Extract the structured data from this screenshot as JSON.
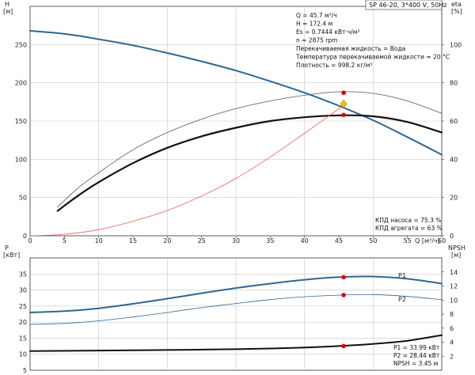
{
  "chart_data": [
    {
      "type": "line",
      "title": "SP 46-20, 3*400 V, 50Hz",
      "xlabel": "Q [м³/ч]",
      "xlim": [
        0,
        60
      ],
      "x_ticks": [
        0,
        5,
        10,
        15,
        20,
        25,
        30,
        35,
        40,
        45,
        50,
        55,
        60
      ],
      "ylabel_left": [
        "H",
        "[м]"
      ],
      "ylim_left": [
        0,
        300
      ],
      "y_ticks_left": [
        0,
        50,
        100,
        150,
        200,
        250
      ],
      "ylabel_right": [
        "eta",
        "[%]"
      ],
      "ylim_right": [
        0,
        120
      ],
      "y_ticks_right": [
        0,
        20,
        40,
        60,
        80,
        100
      ],
      "grid": true,
      "info_lines": [
        "Q = 45.7 м³/ч",
        "H = 172.4 м",
        "Es = 0.7444 кВт·ч/м³",
        "n = 2875 rpm",
        "Перекачиваемая жидкость = Вода",
        "Температура перекачиваемой жидкости = 20 °C",
        "Плотность = 998.2 кг/м³"
      ],
      "footer_lines": [
        "КПД насоса = 75.3 %",
        "КПД агрегата = 63 %"
      ],
      "series": [
        {
          "axis": "left",
          "color": "#2f6690",
          "width": 2,
          "x": [
            0,
            5,
            10,
            15,
            20,
            25,
            30,
            35,
            40,
            45,
            50,
            55,
            60
          ],
          "y": [
            268,
            264,
            257,
            249,
            239,
            228,
            216,
            202,
            187,
            170,
            151,
            129,
            106
          ]
        },
        {
          "axis": "right",
          "color": "#111111",
          "width": 2.2,
          "x": [
            4,
            7,
            10,
            15,
            20,
            25,
            30,
            35,
            40,
            45,
            50,
            55,
            60
          ],
          "y": [
            13,
            21,
            28,
            38,
            46,
            52,
            56.5,
            60,
            62,
            63,
            62.5,
            59.5,
            54
          ]
        },
        {
          "axis": "right",
          "color": "#555555",
          "width": 0.8,
          "x": [
            4,
            7,
            10,
            15,
            20,
            25,
            30,
            35,
            40,
            45,
            50,
            55,
            60
          ],
          "y": [
            15,
            25,
            33,
            45,
            54,
            61,
            66.5,
            70.5,
            73.5,
            75.3,
            74.5,
            70.5,
            64
          ]
        },
        {
          "axis": "left",
          "color": "#ff5a5a",
          "width": 0.8,
          "x": [
            0,
            5,
            10,
            15,
            20,
            25,
            30,
            35,
            40,
            45,
            46
          ],
          "y": [
            0,
            2,
            8,
            19,
            33,
            52,
            75,
            103,
            134,
            166,
            173
          ]
        }
      ],
      "markers": [
        {
          "axis": "left",
          "x": 45.7,
          "y": 187,
          "color": "#e00000",
          "shape": "dot"
        },
        {
          "axis": "left",
          "x": 45.7,
          "y": 158,
          "color": "#e00000",
          "shape": "dot"
        },
        {
          "axis": "left",
          "x": 45.7,
          "y": 172.4,
          "color": "#f5c000",
          "shape": "diamond"
        }
      ]
    },
    {
      "type": "line",
      "ylabel_left": [
        "P",
        "[кВт]"
      ],
      "ylim_left": [
        5,
        40
      ],
      "y_ticks_left": [
        5,
        10,
        15,
        20,
        25,
        30,
        35
      ],
      "ylabel_right": [
        "NPSH",
        "[м]"
      ],
      "ylim_right": [
        0,
        16
      ],
      "y_ticks_right": [
        2,
        4,
        6,
        8,
        10,
        12,
        14
      ],
      "xlim": [
        0,
        60
      ],
      "grid": true,
      "footer_lines": [
        "P1 = 33.99 кВт",
        "P2 = 28.44 кВт",
        "NPSH = 3.45 м"
      ],
      "series": [
        {
          "name": "P1",
          "axis": "left",
          "color": "#2f6690",
          "width": 2,
          "x": [
            0,
            5,
            10,
            15,
            20,
            25,
            30,
            35,
            40,
            45,
            50,
            55,
            60
          ],
          "y": [
            23,
            23.4,
            24.3,
            25.7,
            27.3,
            29.0,
            30.6,
            32.0,
            33.2,
            34.0,
            34.2,
            33.5,
            32.0
          ]
        },
        {
          "name": "P2",
          "axis": "left",
          "color": "#2f6690",
          "width": 0.8,
          "x": [
            0,
            5,
            10,
            15,
            20,
            25,
            30,
            35,
            40,
            45,
            50,
            55,
            60
          ],
          "y": [
            19.3,
            19.6,
            20.4,
            21.6,
            23.0,
            24.5,
            25.8,
            27.0,
            27.9,
            28.4,
            28.6,
            28.0,
            27.0
          ]
        },
        {
          "axis": "right",
          "color": "#111111",
          "width": 2,
          "x": [
            0,
            10,
            20,
            30,
            35,
            40,
            45,
            50,
            55,
            60
          ],
          "y": [
            2.73,
            2.8,
            2.88,
            3.0,
            3.1,
            3.23,
            3.45,
            3.75,
            4.2,
            5.0
          ]
        }
      ],
      "markers": [
        {
          "axis": "left",
          "x": 45.7,
          "y": 33.99,
          "color": "#e00000",
          "shape": "dot"
        },
        {
          "axis": "left",
          "x": 45.7,
          "y": 28.44,
          "color": "#e00000",
          "shape": "dot"
        },
        {
          "axis": "right",
          "x": 45.7,
          "y": 3.45,
          "color": "#e00000",
          "shape": "dot"
        }
      ]
    }
  ]
}
